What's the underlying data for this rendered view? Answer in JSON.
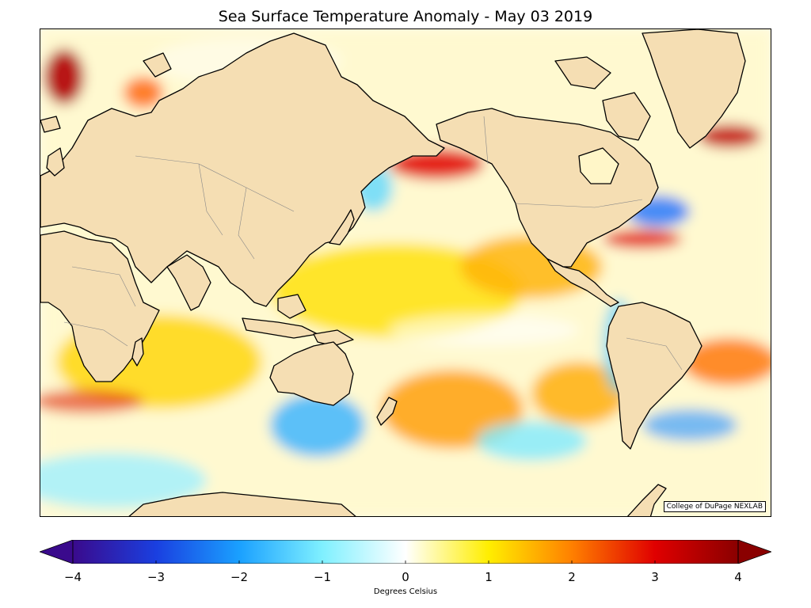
{
  "title": "Sea Surface Temperature Anomaly - May 03 2019",
  "credit": "College of DuPage NEXLAB",
  "colorbar": {
    "label": "Degrees Celsius",
    "ticks": [
      "−4",
      "−3",
      "−2",
      "−1",
      "0",
      "1",
      "2",
      "3",
      "4"
    ],
    "range": [
      -4,
      4
    ],
    "extend": "both",
    "stops": [
      {
        "value": -4,
        "color": "#3a0a8c"
      },
      {
        "value": -3,
        "color": "#1a3fe0"
      },
      {
        "value": -2,
        "color": "#1aa0ff"
      },
      {
        "value": -1,
        "color": "#7ff0ff"
      },
      {
        "value": 0,
        "color": "#ffffff"
      },
      {
        "value": 1,
        "color": "#ffee00"
      },
      {
        "value": 2,
        "color": "#ff8000"
      },
      {
        "value": 3,
        "color": "#e00000"
      },
      {
        "value": 4,
        "color": "#8a0000"
      }
    ]
  },
  "colors": {
    "land": "#f5deb3",
    "coastline": "#000000",
    "border": "#888888"
  }
}
